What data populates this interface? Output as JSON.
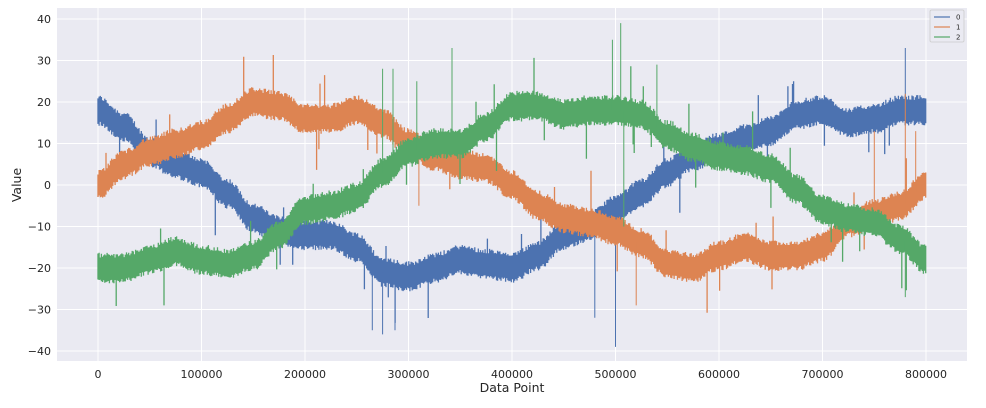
{
  "chart_data": {
    "type": "line",
    "title": "",
    "xlabel": "Data Point",
    "ylabel": "Value",
    "xlim": [
      -50000,
      850000
    ],
    "ylim": [
      -43,
      43
    ],
    "grid": true,
    "legend_position": "upper right",
    "x_ticks": [
      0,
      100000,
      200000,
      300000,
      400000,
      500000,
      600000,
      700000,
      800000
    ],
    "x_tick_labels": [
      "0",
      "100000",
      "200000",
      "300000",
      "400000",
      "500000",
      "600000",
      "700000",
      "800000"
    ],
    "y_ticks": [
      40,
      30,
      20,
      10,
      0,
      -10,
      -20,
      -30,
      -40
    ],
    "y_tick_labels": [
      "40",
      "30",
      "20",
      "10",
      "0",
      "−10",
      "−20",
      "−30",
      "−40"
    ],
    "x": [
      0,
      25000,
      50000,
      75000,
      100000,
      125000,
      150000,
      175000,
      200000,
      225000,
      250000,
      275000,
      300000,
      325000,
      350000,
      375000,
      400000,
      425000,
      450000,
      475000,
      500000,
      525000,
      550000,
      575000,
      600000,
      625000,
      650000,
      675000,
      700000,
      725000,
      750000,
      775000,
      800000
    ],
    "series": [
      {
        "name": "0",
        "color": "#4c72b0",
        "band_halfwidth": 2.5,
        "values": [
          18,
          14,
          8,
          5,
          3,
          -2,
          -8,
          -11,
          -12,
          -12,
          -15,
          -21,
          -22,
          -20,
          -18,
          -19,
          -20,
          -17,
          -12,
          -10,
          -6,
          -2,
          3,
          7,
          9,
          11,
          13,
          17,
          18,
          15,
          16,
          18,
          18
        ],
        "spikes": [
          [
            265000,
            -35
          ],
          [
            275000,
            -36
          ],
          [
            287000,
            -35
          ],
          [
            500000,
            -39
          ],
          [
            780000,
            33
          ],
          [
            480000,
            -32
          ]
        ]
      },
      {
        "name": "1",
        "color": "#dd8452",
        "band_halfwidth": 2.5,
        "values": [
          0,
          5,
          8,
          10,
          12,
          16,
          20,
          19,
          16,
          16,
          18,
          15,
          10,
          7,
          5,
          4,
          0,
          -5,
          -8,
          -9,
          -11,
          -14,
          -19,
          -20,
          -17,
          -15,
          -17,
          -17,
          -15,
          -9,
          -7,
          -5,
          0
        ],
        "spikes": [
          [
            310000,
            -5
          ],
          [
            520000,
            -29
          ],
          [
            750000,
            13
          ],
          [
            780000,
            22
          ],
          [
            790000,
            13
          ]
        ]
      },
      {
        "name": "2",
        "color": "#55a868",
        "band_halfwidth": 2.5,
        "values": [
          -20,
          -20,
          -18,
          -16,
          -18,
          -19,
          -17,
          -12,
          -6,
          -5,
          -3,
          3,
          8,
          10,
          10,
          14,
          19,
          19,
          17,
          18,
          18,
          17,
          12,
          9,
          7,
          6,
          4,
          -1,
          -6,
          -8,
          -9,
          -13,
          -18
        ],
        "spikes": [
          [
            275000,
            28
          ],
          [
            285000,
            28
          ],
          [
            308000,
            25
          ],
          [
            342000,
            33
          ],
          [
            505000,
            39
          ],
          [
            497000,
            35
          ],
          [
            540000,
            29
          ],
          [
            780000,
            -27
          ],
          [
            508000,
            -10
          ]
        ]
      }
    ]
  },
  "legend": {
    "items": [
      {
        "label": "0",
        "color": "#4c72b0"
      },
      {
        "label": "1",
        "color": "#dd8452"
      },
      {
        "label": "2",
        "color": "#55a868"
      }
    ]
  }
}
